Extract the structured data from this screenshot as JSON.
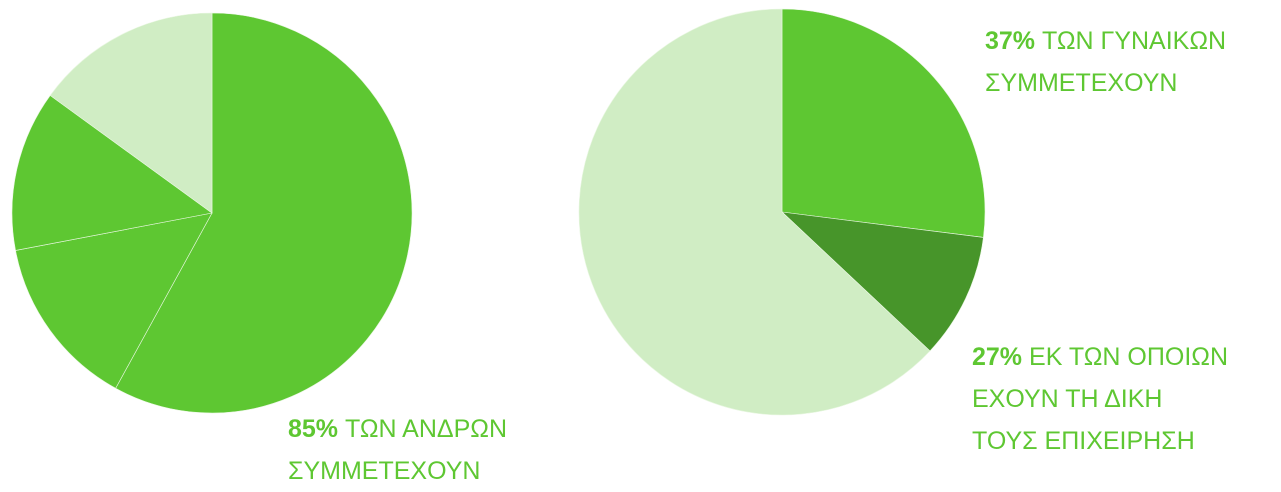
{
  "chart_data": [
    {
      "type": "pie",
      "values": [
        58,
        14,
        13,
        15
      ],
      "colors": [
        "#5ec732",
        "#5ec732",
        "#5ec732",
        "#d0edc4"
      ],
      "annotations": [
        {
          "highlight": "85%",
          "lines": [
            "ΤΩΝ ΑΝΔΡΩΝ",
            "ΣΥΜΜΕΤΕΧΟΥΝ"
          ]
        }
      ]
    },
    {
      "type": "pie",
      "values": [
        27,
        10,
        63
      ],
      "colors": [
        "#5ec732",
        "#47952a",
        "#d0edc4"
      ],
      "annotations": [
        {
          "highlight": "37%",
          "lines": [
            "ΤΩΝ ΓΥΝΑΙΚΩΝ",
            "ΣΥΜΜΕΤΕΧΟΥΝ"
          ]
        },
        {
          "highlight": "27%",
          "lines": [
            "ΕΚ ΤΩΝ ΟΠΟΙΩΝ",
            "ΕΧΟΥΝ ΤΗ ΔΙΚΗ",
            "ΤΟΥΣ ΕΠΙΧΕΙΡΗΣΗ"
          ]
        }
      ]
    }
  ]
}
